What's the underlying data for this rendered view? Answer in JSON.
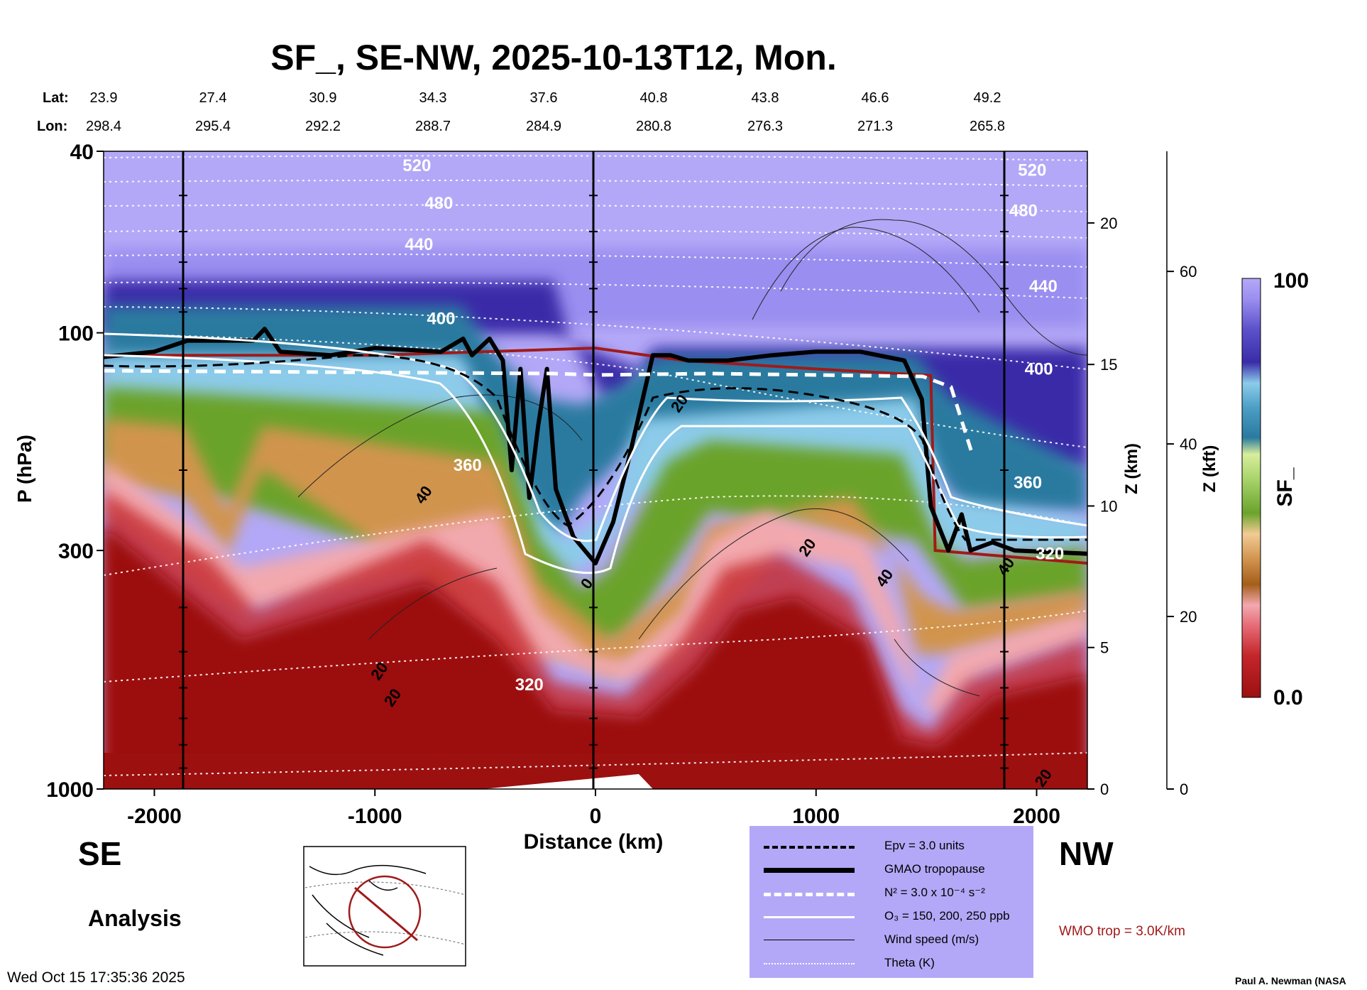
{
  "title": "SF_, SE-NW, 2025-10-13T12, Mon.",
  "direction": {
    "left": "SE",
    "right": "NW"
  },
  "analysis_label": "Analysis",
  "timestamp": "Wed Oct 15 17:35:36 2025",
  "credit": "Paul A. Newman (NASA",
  "wmo_note": "WMO trop = 3.0K/km",
  "latlon": {
    "lat_label": "Lat:",
    "lon_label": "Lon:",
    "lat": [
      "23.9",
      "27.4",
      "30.9",
      "34.3",
      "37.6",
      "40.8",
      "43.8",
      "46.6",
      "49.2"
    ],
    "lon": [
      "298.4",
      "295.4",
      "292.2",
      "288.7",
      "284.9",
      "280.8",
      "276.3",
      "271.3",
      "265.8"
    ]
  },
  "legend": [
    {
      "label": "Epv = 3.0 units",
      "style": "dashed-black"
    },
    {
      "label": "GMAO tropopause",
      "style": "thick-black"
    },
    {
      "label": "N² = 3.0 x 10⁻⁴ s⁻²",
      "style": "dashed-white"
    },
    {
      "label": "O₃ = 150, 200, 250 ppb",
      "style": "solid-white"
    },
    {
      "label": "Wind speed (m/s)",
      "style": "thin-black"
    },
    {
      "label": "Theta (K)",
      "style": "dotted-white"
    }
  ],
  "chart_data": {
    "type": "heatmap",
    "xlabel": "Distance (km)",
    "ylabel": "P (hPa)",
    "z_km_label": "Z (km)",
    "z_kft_label": "Z (kft)",
    "colorbar_label": "SF_",
    "xlim": [
      -2230,
      2230
    ],
    "ylim_hPa": [
      1000,
      40
    ],
    "y_scale": "log",
    "x_ticks": [
      "-2000",
      "-1000",
      "0",
      "1000",
      "2000"
    ],
    "x_tick_values": [
      -2000,
      -1000,
      0,
      1000,
      2000
    ],
    "y_ticks": [
      "40",
      "100",
      "300",
      "1000"
    ],
    "y_tick_values": [
      40,
      100,
      300,
      1000
    ],
    "z_km_ticks": [
      "20",
      "15",
      "10",
      "5",
      "0"
    ],
    "z_km_values": [
      20,
      15,
      10,
      5,
      0
    ],
    "z_kft_ticks": [
      "60",
      "40",
      "20",
      "0"
    ],
    "z_kft_values": [
      60,
      40,
      20,
      0
    ],
    "colorbar_range": [
      "0.0",
      "100"
    ],
    "colorbar_colors": [
      "#9c1010",
      "#c4262b",
      "#e66a75",
      "#f2a9ae",
      "#a45e1a",
      "#d1944e",
      "#f2cb95",
      "#6aa32c",
      "#a8d36b",
      "#d8ee9c",
      "#2a7aa0",
      "#4b9dc5",
      "#8ccbea",
      "#3a2ca8",
      "#5e52cc",
      "#9a8ef0",
      "#b3a8f7"
    ],
    "theta_labels": [
      {
        "text": "520",
        "x": -810,
        "p": 43
      },
      {
        "text": "480",
        "x": -710,
        "p": 52
      },
      {
        "text": "440",
        "x": -800,
        "p": 64
      },
      {
        "text": "400",
        "x": -700,
        "p": 93
      },
      {
        "text": "360",
        "x": -580,
        "p": 195
      },
      {
        "text": "320",
        "x": -300,
        "p": 590
      },
      {
        "text": "520",
        "x": 1980,
        "p": 44
      },
      {
        "text": "480",
        "x": 1940,
        "p": 54
      },
      {
        "text": "440",
        "x": 2030,
        "p": 79
      },
      {
        "text": "400",
        "x": 2010,
        "p": 120
      },
      {
        "text": "360",
        "x": 1960,
        "p": 213
      },
      {
        "text": "320",
        "x": 2060,
        "p": 305
      }
    ],
    "wind_labels": [
      {
        "text": "40",
        "x": -760,
        "p": 230
      },
      {
        "text": "20",
        "x": -960,
        "p": 560
      },
      {
        "text": "20",
        "x": -900,
        "p": 640
      },
      {
        "text": "20",
        "x": 980,
        "p": 300
      },
      {
        "text": "40",
        "x": 1330,
        "p": 350
      },
      {
        "text": "40",
        "x": 1880,
        "p": 330
      },
      {
        "text": "20",
        "x": 2050,
        "p": 960
      },
      {
        "text": "20",
        "x": 400,
        "p": 145
      },
      {
        "text": "0",
        "x": -20,
        "p": 360
      }
    ],
    "theta_levels_K": [
      520,
      480,
      440,
      400,
      360,
      320
    ],
    "tropopause_wmo_hPa": [
      [
        -2230,
        112
      ],
      [
        -1000,
        112
      ],
      [
        -500,
        110
      ],
      [
        0,
        108
      ],
      [
        400,
        115
      ],
      [
        1000,
        120
      ],
      [
        1520,
        124
      ],
      [
        1540,
        300
      ],
      [
        2230,
        320
      ]
    ],
    "tropopause_gmao_hPa": [
      [
        -2230,
        113
      ],
      [
        -2000,
        110
      ],
      [
        -1850,
        104
      ],
      [
        -1550,
        104
      ],
      [
        -1500,
        98
      ],
      [
        -1430,
        110
      ],
      [
        -1200,
        112
      ],
      [
        -1000,
        108
      ],
      [
        -700,
        110
      ],
      [
        -600,
        103
      ],
      [
        -560,
        112
      ],
      [
        -480,
        103
      ],
      [
        -420,
        115
      ],
      [
        -380,
        200
      ],
      [
        -340,
        120
      ],
      [
        -300,
        230
      ],
      [
        -260,
        160
      ],
      [
        -220,
        120
      ],
      [
        -180,
        220
      ],
      [
        -100,
        280
      ],
      [
        0,
        320
      ],
      [
        80,
        260
      ],
      [
        150,
        190
      ],
      [
        260,
        112
      ],
      [
        340,
        112
      ],
      [
        420,
        115
      ],
      [
        600,
        115
      ],
      [
        800,
        112
      ],
      [
        1000,
        110
      ],
      [
        1200,
        110
      ],
      [
        1400,
        115
      ],
      [
        1480,
        140
      ],
      [
        1520,
        240
      ],
      [
        1600,
        300
      ],
      [
        1660,
        250
      ],
      [
        1700,
        300
      ],
      [
        1800,
        288
      ],
      [
        1900,
        300
      ],
      [
        2230,
        305
      ]
    ]
  }
}
